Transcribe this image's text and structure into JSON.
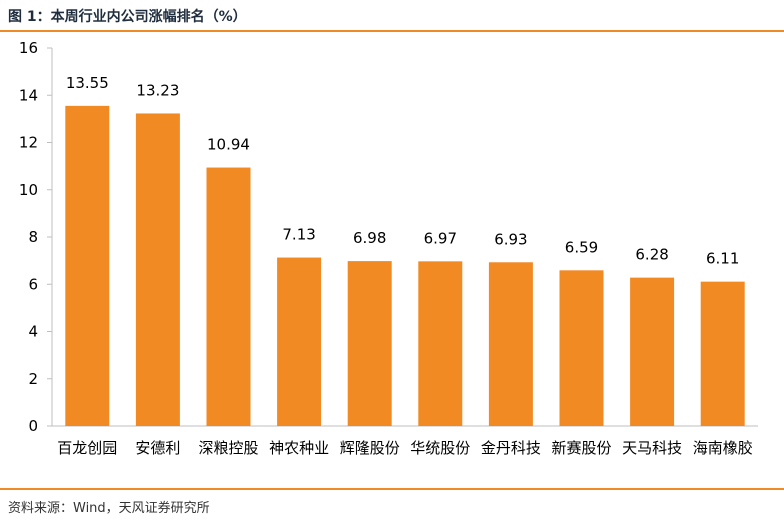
{
  "figure": {
    "title": "图 1：本周行业内公司涨幅排名（%）",
    "source": "资料来源：Wind，天风证券研究所"
  },
  "colors": {
    "bar": "#f28a24",
    "rule": "#f08a24",
    "axis": "#bfbfbf"
  },
  "chart_data": {
    "type": "bar",
    "title": "",
    "xlabel": "",
    "ylabel": "",
    "ylim": [
      0,
      16
    ],
    "yticks": [
      0,
      2,
      4,
      6,
      8,
      10,
      12,
      14,
      16
    ],
    "grid": false,
    "legend": "none",
    "categories": [
      "百龙创园",
      "安德利",
      "深粮控股",
      "神农种业",
      "辉隆股份",
      "华统股份",
      "金丹科技",
      "新赛股份",
      "天马科技",
      "海南橡胶"
    ],
    "values": [
      13.55,
      13.23,
      10.94,
      7.13,
      6.98,
      6.97,
      6.93,
      6.59,
      6.28,
      6.11
    ],
    "data_labels": [
      "13.55",
      "13.23",
      "10.94",
      "7.13",
      "6.98",
      "6.97",
      "6.93",
      "6.59",
      "6.28",
      "6.11"
    ]
  }
}
